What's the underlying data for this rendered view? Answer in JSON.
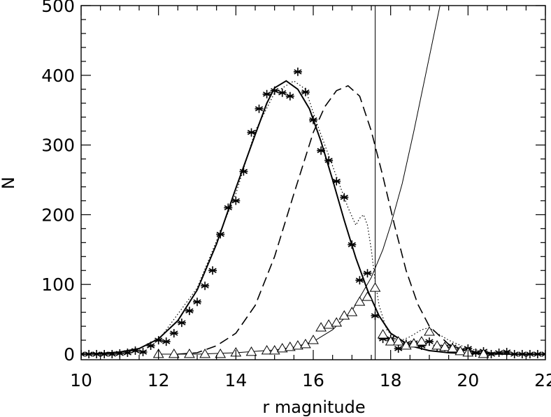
{
  "chart_data": {
    "type": "line",
    "title": "",
    "xlabel": "r magnitude",
    "ylabel": "N",
    "xlim": [
      10,
      22
    ],
    "ylim": [
      -8,
      500
    ],
    "grid": false,
    "legend": "none",
    "x_ticks": [
      10,
      12,
      14,
      16,
      18,
      20,
      22
    ],
    "y_ticks": [
      0,
      100,
      200,
      300,
      400,
      500
    ],
    "vertical_line_x": 17.6,
    "series": [
      {
        "style": "solid-thick",
        "x": [
          10.0,
          10.5,
          11.0,
          11.5,
          12.0,
          12.5,
          13.0,
          13.5,
          14.0,
          14.5,
          14.8,
          15.0,
          15.3,
          15.6,
          15.9,
          16.2,
          16.5,
          16.8,
          17.1,
          17.4,
          17.7,
          18.0,
          18.5,
          19.0,
          19.5,
          20.0,
          21.0,
          22.0
        ],
        "y": [
          0,
          1,
          3,
          8,
          22,
          48,
          92,
          158,
          238,
          315,
          360,
          382,
          392,
          380,
          352,
          305,
          250,
          192,
          138,
          92,
          55,
          30,
          12,
          5,
          2,
          1,
          0,
          0
        ]
      },
      {
        "style": "dashed",
        "x": [
          12.5,
          13.0,
          13.5,
          14.0,
          14.5,
          15.0,
          15.5,
          16.0,
          16.3,
          16.6,
          16.9,
          17.2,
          17.5,
          17.8,
          18.1,
          18.4,
          18.7,
          19.0,
          19.5,
          20.0,
          21.0
        ],
        "y": [
          0,
          2,
          12,
          30,
          70,
          140,
          230,
          318,
          355,
          378,
          385,
          370,
          320,
          255,
          185,
          120,
          72,
          40,
          14,
          4,
          0
        ]
      },
      {
        "style": "dotted",
        "x": [
          12.0,
          13.0,
          14.0,
          14.5,
          15.0,
          15.5,
          15.8,
          16.1,
          16.4,
          16.7,
          16.9,
          17.1,
          17.2,
          17.3,
          17.4,
          17.5,
          17.6,
          17.7,
          17.9,
          18.2,
          18.5,
          18.8,
          19.0,
          19.2,
          19.5,
          20.0,
          20.5,
          21.0
        ],
        "y": [
          20,
          95,
          230,
          320,
          375,
          392,
          380,
          330,
          285,
          240,
          210,
          185,
          195,
          200,
          185,
          150,
          105,
          70,
          35,
          18,
          25,
          35,
          38,
          30,
          20,
          8,
          3,
          0
        ]
      },
      {
        "style": "solid-thin",
        "x": [
          12.0,
          13.0,
          14.0,
          14.5,
          15.0,
          15.5,
          16.0,
          16.5,
          17.0,
          17.5,
          17.8,
          18.0,
          18.3,
          18.6,
          18.9,
          19.2,
          19.5
        ],
        "y": [
          0,
          0,
          2,
          4,
          6,
          10,
          18,
          35,
          62,
          110,
          150,
          185,
          245,
          320,
          400,
          480,
          560
        ]
      },
      {
        "marker": "asterisk",
        "x": [
          10.0,
          10.2,
          10.4,
          10.6,
          10.8,
          11.0,
          11.2,
          11.4,
          11.6,
          11.8,
          12.0,
          12.2,
          12.4,
          12.6,
          12.8,
          13.0,
          13.2,
          13.4,
          13.6,
          13.8,
          14.0,
          14.2,
          14.4,
          14.6,
          14.8,
          15.0,
          15.2,
          15.4,
          15.6,
          15.8,
          16.0,
          16.2,
          16.4,
          16.6,
          16.8,
          17.0,
          17.2,
          17.4,
          17.6,
          17.8,
          18.0,
          18.2,
          18.4,
          18.6,
          18.8,
          19.0,
          19.2,
          19.4,
          19.6,
          19.8,
          20.0,
          20.2,
          20.4,
          20.6,
          20.8,
          21.0,
          21.2,
          21.4,
          21.6,
          21.8,
          22.0
        ],
        "y": [
          0,
          0,
          0,
          0,
          0,
          1,
          2,
          5,
          3,
          12,
          20,
          18,
          30,
          45,
          62,
          75,
          98,
          120,
          172,
          210,
          220,
          262,
          318,
          352,
          373,
          378,
          375,
          370,
          405,
          376,
          336,
          292,
          278,
          248,
          225,
          157,
          106,
          116,
          55,
          22,
          22,
          8,
          15,
          16,
          12,
          18,
          10,
          10,
          10,
          5,
          8,
          2,
          4,
          0,
          2,
          3,
          0,
          0,
          0,
          0,
          0
        ]
      },
      {
        "marker": "triangle",
        "x": [
          12.0,
          12.4,
          12.8,
          13.2,
          13.6,
          14.0,
          14.4,
          14.8,
          15.0,
          15.2,
          15.4,
          15.6,
          15.8,
          16.0,
          16.2,
          16.4,
          16.6,
          16.8,
          17.0,
          17.2,
          17.4,
          17.6,
          17.8,
          18.0,
          18.2,
          18.4,
          18.6,
          18.8,
          19.0,
          19.2,
          19.4,
          19.6,
          19.8,
          20.0,
          20.4
        ],
        "y": [
          0,
          0,
          0,
          0,
          0,
          2,
          3,
          5,
          5,
          8,
          10,
          12,
          14,
          20,
          38,
          42,
          45,
          55,
          60,
          75,
          82,
          95,
          28,
          18,
          18,
          12,
          15,
          18,
          32,
          12,
          10,
          8,
          4,
          2,
          0
        ]
      }
    ]
  }
}
